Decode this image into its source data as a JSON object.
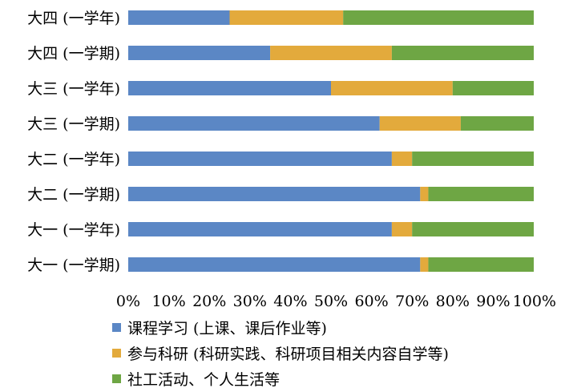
{
  "chart_data": {
    "type": "bar",
    "orientation": "horizontal",
    "stacked": "percent",
    "categories": [
      "大一 (一学期)",
      "大一 (一学年)",
      "大二 (一学期)",
      "大二 (一学年)",
      "大三 (一学期)",
      "大三 (一学年)",
      "大四 (一学期)",
      "大四 (一学年)"
    ],
    "series": [
      {
        "name": "课程学习 (上课、课后作业等)",
        "color": "#5b87c5",
        "values": [
          72,
          65,
          72,
          65,
          62,
          50,
          35,
          25
        ]
      },
      {
        "name": "参与科研 (科研实践、科研项目相关内容自学等)",
        "color": "#e3aa3c",
        "values": [
          2,
          5,
          2,
          5,
          20,
          30,
          30,
          28
        ]
      },
      {
        "name": "社工活动、个人生活等",
        "color": "#6ea644",
        "values": [
          26,
          30,
          26,
          30,
          18,
          20,
          35,
          47
        ]
      }
    ],
    "xlim": [
      0,
      100
    ],
    "xticks": [
      "0%",
      "10%",
      "20%",
      "30%",
      "40%",
      "50%",
      "60%",
      "70%",
      "80%",
      "90%",
      "100%"
    ],
    "title": "",
    "xlabel": "",
    "ylabel": "",
    "grid": false,
    "legend_position": "bottom"
  }
}
